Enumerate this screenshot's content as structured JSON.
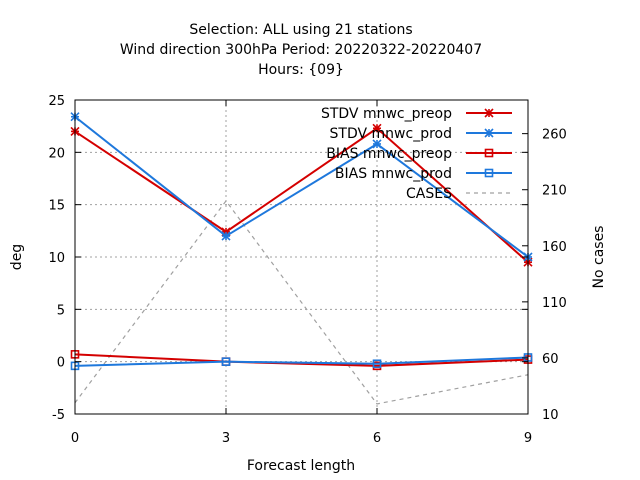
{
  "chart_data": {
    "type": "line",
    "title_lines": [
      "Selection: ALL using    21 stations",
      "Wind direction 300hPa   Period: 20220322-20220407",
      "Hours: {09}"
    ],
    "xlabel": "Forecast length",
    "ylabel": "deg",
    "y2label": "No cases",
    "x": [
      0,
      3,
      6,
      9
    ],
    "x_ticks": [
      0,
      3,
      6,
      9
    ],
    "xlim": [
      0,
      9
    ],
    "ylim": [
      -5,
      25
    ],
    "y_ticks": [
      -5,
      0,
      5,
      10,
      15,
      20,
      25
    ],
    "y2lim": [
      10,
      290
    ],
    "y2_ticks": [
      10,
      60,
      110,
      160,
      210,
      260
    ],
    "grid": true,
    "legend_position": "top-right",
    "series": [
      {
        "name": "STDV mnwc_preop",
        "axis": "y",
        "color": "#d40000",
        "marker": "star",
        "values": [
          22.0,
          12.4,
          22.3,
          9.5
        ]
      },
      {
        "name": "STDV mnwc_prod",
        "axis": "y",
        "color": "#1e78dc",
        "marker": "star",
        "values": [
          23.4,
          12.0,
          20.8,
          10.0
        ]
      },
      {
        "name": "BIAS mnwc_preop",
        "axis": "y",
        "color": "#d40000",
        "marker": "square",
        "values": [
          0.7,
          0.0,
          -0.4,
          0.2
        ]
      },
      {
        "name": "BIAS mnwc_prod",
        "axis": "y",
        "color": "#1e78dc",
        "marker": "square",
        "values": [
          -0.4,
          0.0,
          -0.2,
          0.4
        ]
      },
      {
        "name": "CASES",
        "axis": "y2",
        "color": "#a0a0a0",
        "marker": "none",
        "dashed": true,
        "values": [
          20,
          200,
          19,
          45
        ]
      }
    ]
  }
}
